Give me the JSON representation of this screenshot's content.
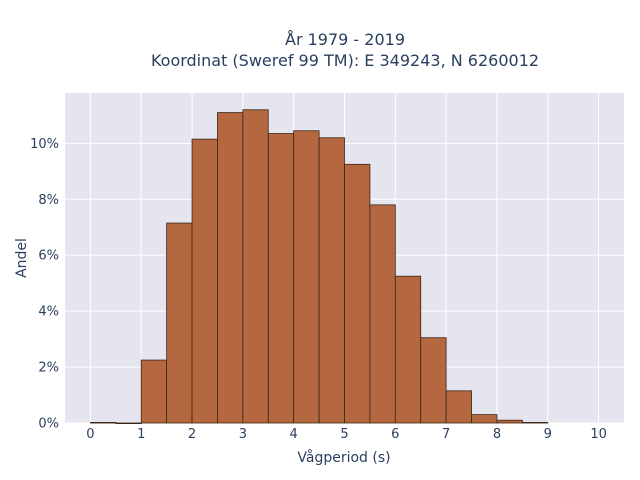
{
  "chart_data": {
    "type": "bar",
    "title_line1": "År 1979 - 2019",
    "title_line2": "Koordinat (Sweref 99 TM): E 349243, N 6260012",
    "xlabel": "Vågperiod (s)",
    "ylabel": "Andel",
    "bin_width": 0.5,
    "bins": [
      {
        "x0": 0.0,
        "value": 0.02
      },
      {
        "x0": 0.5,
        "value": 0.0
      },
      {
        "x0": 1.0,
        "value": 2.25
      },
      {
        "x0": 1.5,
        "value": 7.15
      },
      {
        "x0": 2.0,
        "value": 10.15
      },
      {
        "x0": 2.5,
        "value": 11.1
      },
      {
        "x0": 3.0,
        "value": 11.2
      },
      {
        "x0": 3.5,
        "value": 10.35
      },
      {
        "x0": 4.0,
        "value": 10.45
      },
      {
        "x0": 4.5,
        "value": 10.2
      },
      {
        "x0": 5.0,
        "value": 9.25
      },
      {
        "x0": 5.5,
        "value": 7.8
      },
      {
        "x0": 6.0,
        "value": 5.25
      },
      {
        "x0": 6.5,
        "value": 3.05
      },
      {
        "x0": 7.0,
        "value": 1.15
      },
      {
        "x0": 7.5,
        "value": 0.3
      },
      {
        "x0": 8.0,
        "value": 0.1
      },
      {
        "x0": 8.5,
        "value": 0.02
      }
    ],
    "x_ticks": [
      0,
      1,
      2,
      3,
      4,
      5,
      6,
      7,
      8,
      9,
      10
    ],
    "y_ticks": [
      {
        "value": 0,
        "label": "0%"
      },
      {
        "value": 2,
        "label": "2%"
      },
      {
        "value": 4,
        "label": "4%"
      },
      {
        "value": 6,
        "label": "6%"
      },
      {
        "value": 8,
        "label": "8%"
      },
      {
        "value": 10,
        "label": "10%"
      }
    ],
    "xlim": [
      -0.5,
      10.5
    ],
    "ylim": [
      0,
      11.8
    ],
    "grid": true,
    "colors": {
      "bar_fill": "#b5683f",
      "bar_edge": "#3a2516",
      "plot_bg": "#e5e5ef",
      "grid": "#ffffff"
    }
  }
}
